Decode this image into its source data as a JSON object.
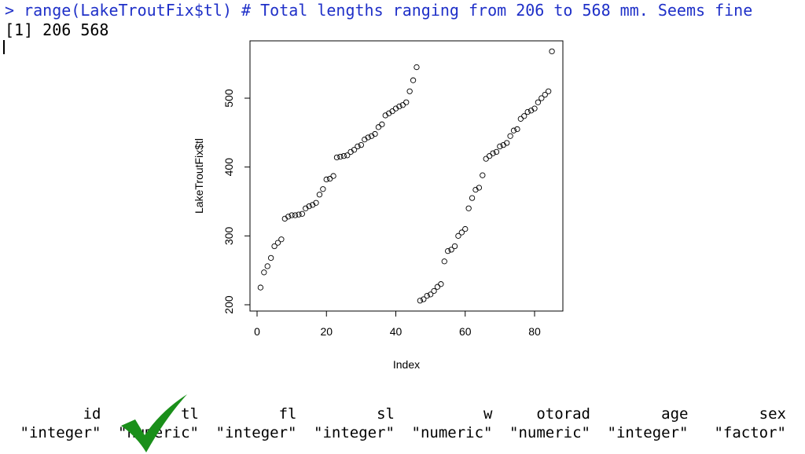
{
  "console": {
    "command": "> range(LakeTroutFix$tl) # Total lengths ranging from 206 to 568 mm. Seems fine",
    "output": "[1] 206 568"
  },
  "chart_data": {
    "type": "scatter",
    "xlabel": "Index",
    "ylabel": "LakeTroutFix$tl",
    "xlim": [
      0,
      88
    ],
    "ylim": [
      190,
      575
    ],
    "xticks": [
      "0",
      "20",
      "40",
      "60",
      "80"
    ],
    "yticks": [
      "200",
      "300",
      "400",
      "500"
    ],
    "grid": false,
    "marker": "open-circle",
    "x": [
      1,
      2,
      3,
      4,
      5,
      6,
      7,
      8,
      9,
      10,
      11,
      12,
      13,
      14,
      15,
      16,
      17,
      18,
      19,
      20,
      21,
      22,
      23,
      24,
      25,
      26,
      27,
      28,
      29,
      30,
      31,
      32,
      33,
      34,
      35,
      36,
      37,
      38,
      39,
      40,
      41,
      42,
      43,
      44,
      45,
      46,
      47,
      48,
      49,
      50,
      51,
      52,
      53,
      54,
      55,
      56,
      57,
      58,
      59,
      60,
      61,
      62,
      63,
      64,
      65,
      66,
      67,
      68,
      69,
      70,
      71,
      72,
      73,
      74,
      75,
      76,
      77,
      78,
      79,
      80,
      81,
      82,
      83,
      84,
      85
    ],
    "y": [
      225,
      247,
      256,
      268,
      285,
      290,
      295,
      325,
      328,
      330,
      330,
      331,
      332,
      340,
      343,
      345,
      348,
      360,
      368,
      382,
      383,
      387,
      414,
      415,
      416,
      417,
      422,
      425,
      430,
      432,
      440,
      443,
      445,
      448,
      458,
      462,
      475,
      478,
      481,
      485,
      488,
      490,
      494,
      510,
      526,
      545,
      206,
      208,
      213,
      215,
      220,
      226,
      230,
      263,
      278,
      280,
      285,
      300,
      305,
      310,
      340,
      355,
      367,
      370,
      388,
      412,
      416,
      420,
      422,
      430,
      432,
      435,
      445,
      453,
      455,
      470,
      474,
      480,
      482,
      485,
      494,
      500,
      505,
      510,
      568
    ]
  },
  "types_table": {
    "headers": [
      "id",
      "tl",
      "fl",
      "sl",
      "w",
      "otorad",
      "age",
      "sex"
    ],
    "values": [
      "\"integer\"",
      "\"numeric\"",
      "\"integer\"",
      "\"integer\"",
      "\"numeric\"",
      "\"numeric\"",
      "\"integer\"",
      "\"factor\""
    ]
  },
  "colors": {
    "command": "#1f30c8",
    "checkmark": "#1a8f1a"
  },
  "icons": {
    "checkmark": "checkmark-icon"
  }
}
